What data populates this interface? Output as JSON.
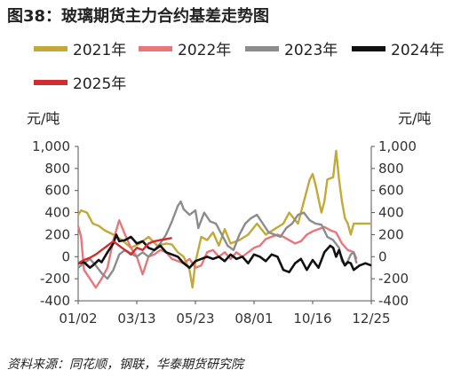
{
  "title": "图38：玻璃期货主力合约基差走势图",
  "source": "资料来源：同花顺，钢联，华泰期货研究院",
  "chart_data": {
    "type": "line",
    "x_ticks": [
      "01/02",
      "03/13",
      "05/23",
      "08/01",
      "10/16",
      "12/25"
    ],
    "y_ticks": [
      "1,000",
      "800",
      "600",
      "400",
      "200",
      "0",
      "-200",
      "-400"
    ],
    "y2_ticks": [
      "1,000",
      "800",
      "600",
      "400",
      "200",
      "0",
      "-200",
      "-400"
    ],
    "ylabel": "元/吨",
    "y2label": "元/吨",
    "ylim": [
      -400,
      1000
    ],
    "series": [
      {
        "name": "2021年",
        "color": "#c2a93a",
        "points": [
          [
            0,
            380
          ],
          [
            1,
            420
          ],
          [
            3,
            400
          ],
          [
            5,
            300
          ],
          [
            7,
            280
          ],
          [
            9,
            240
          ],
          [
            12,
            200
          ],
          [
            15,
            150
          ],
          [
            18,
            80
          ],
          [
            21,
            120
          ],
          [
            24,
            180
          ],
          [
            27,
            100
          ],
          [
            30,
            120
          ],
          [
            32,
            110
          ],
          [
            34,
            40
          ],
          [
            36,
            0
          ],
          [
            38,
            -120
          ],
          [
            39,
            -280
          ],
          [
            40,
            -50
          ],
          [
            42,
            180
          ],
          [
            44,
            150
          ],
          [
            46,
            220
          ],
          [
            48,
            100
          ],
          [
            50,
            250
          ],
          [
            52,
            120
          ],
          [
            55,
            150
          ],
          [
            58,
            200
          ],
          [
            61,
            300
          ],
          [
            64,
            200
          ],
          [
            67,
            250
          ],
          [
            70,
            300
          ],
          [
            72,
            400
          ],
          [
            75,
            300
          ],
          [
            77,
            500
          ],
          [
            79,
            700
          ],
          [
            80,
            750
          ],
          [
            81,
            650
          ],
          [
            83,
            400
          ],
          [
            84,
            500
          ],
          [
            85,
            700
          ],
          [
            87,
            720
          ],
          [
            88,
            960
          ],
          [
            89,
            700
          ],
          [
            90,
            500
          ],
          [
            91,
            350
          ],
          [
            92,
            300
          ],
          [
            93,
            200
          ],
          [
            94,
            300
          ],
          [
            96,
            300
          ],
          [
            98,
            300
          ],
          [
            100,
            300
          ]
        ]
      },
      {
        "name": "2022年",
        "color": "#e8767a",
        "points": [
          [
            0,
            280
          ],
          [
            1,
            180
          ],
          [
            2,
            -120
          ],
          [
            4,
            -200
          ],
          [
            6,
            -280
          ],
          [
            8,
            -200
          ],
          [
            10,
            -100
          ],
          [
            12,
            150
          ],
          [
            14,
            330
          ],
          [
            16,
            200
          ],
          [
            18,
            80
          ],
          [
            20,
            0
          ],
          [
            22,
            -160
          ],
          [
            24,
            0
          ],
          [
            26,
            20
          ],
          [
            28,
            60
          ],
          [
            30,
            40
          ],
          [
            32,
            -20
          ],
          [
            34,
            -40
          ],
          [
            36,
            -60
          ],
          [
            38,
            -20
          ],
          [
            40,
            -100
          ],
          [
            42,
            -80
          ],
          [
            44,
            40
          ],
          [
            46,
            60
          ],
          [
            48,
            0
          ],
          [
            50,
            40
          ],
          [
            52,
            -20
          ],
          [
            54,
            40
          ],
          [
            56,
            0
          ],
          [
            58,
            40
          ],
          [
            60,
            80
          ],
          [
            62,
            100
          ],
          [
            64,
            160
          ],
          [
            66,
            180
          ],
          [
            68,
            200
          ],
          [
            70,
            180
          ],
          [
            72,
            150
          ],
          [
            74,
            120
          ],
          [
            76,
            140
          ],
          [
            78,
            200
          ],
          [
            80,
            230
          ],
          [
            82,
            250
          ],
          [
            84,
            270
          ],
          [
            86,
            240
          ],
          [
            88,
            220
          ],
          [
            90,
            120
          ],
          [
            92,
            60
          ],
          [
            94,
            40
          ],
          [
            95,
            -20
          ]
        ]
      },
      {
        "name": "2023年",
        "color": "#8c8c8c",
        "points": [
          [
            0,
            -100
          ],
          [
            2,
            -60
          ],
          [
            4,
            -20
          ],
          [
            6,
            -80
          ],
          [
            8,
            -150
          ],
          [
            10,
            -200
          ],
          [
            12,
            -120
          ],
          [
            14,
            20
          ],
          [
            16,
            60
          ],
          [
            18,
            30
          ],
          [
            20,
            0
          ],
          [
            22,
            40
          ],
          [
            24,
            0
          ],
          [
            26,
            60
          ],
          [
            28,
            120
          ],
          [
            30,
            200
          ],
          [
            32,
            320
          ],
          [
            34,
            460
          ],
          [
            35,
            500
          ],
          [
            36,
            430
          ],
          [
            38,
            380
          ],
          [
            40,
            420
          ],
          [
            41,
            260
          ],
          [
            43,
            400
          ],
          [
            45,
            320
          ],
          [
            47,
            300
          ],
          [
            49,
            200
          ],
          [
            51,
            100
          ],
          [
            53,
            60
          ],
          [
            55,
            200
          ],
          [
            57,
            300
          ],
          [
            59,
            350
          ],
          [
            61,
            380
          ],
          [
            63,
            300
          ],
          [
            65,
            220
          ],
          [
            67,
            200
          ],
          [
            69,
            180
          ],
          [
            71,
            260
          ],
          [
            73,
            300
          ],
          [
            75,
            380
          ],
          [
            77,
            400
          ],
          [
            79,
            330
          ],
          [
            81,
            300
          ],
          [
            83,
            290
          ],
          [
            85,
            180
          ],
          [
            87,
            150
          ],
          [
            89,
            80
          ],
          [
            90,
            -40
          ],
          [
            91,
            -80
          ],
          [
            92,
            -40
          ],
          [
            93,
            20
          ],
          [
            94,
            40
          ],
          [
            95,
            -60
          ]
        ]
      },
      {
        "name": "2024年",
        "color": "#111111",
        "points": [
          [
            0,
            -60
          ],
          [
            2,
            -50
          ],
          [
            4,
            -100
          ],
          [
            5,
            -80
          ],
          [
            7,
            -30
          ],
          [
            8,
            -50
          ],
          [
            10,
            40
          ],
          [
            12,
            120
          ],
          [
            13,
            200
          ],
          [
            14,
            140
          ],
          [
            16,
            150
          ],
          [
            18,
            180
          ],
          [
            20,
            120
          ],
          [
            22,
            140
          ],
          [
            24,
            80
          ],
          [
            26,
            60
          ],
          [
            28,
            100
          ],
          [
            30,
            40
          ],
          [
            32,
            20
          ],
          [
            34,
            0
          ],
          [
            36,
            -60
          ],
          [
            38,
            -100
          ],
          [
            40,
            -40
          ],
          [
            42,
            -20
          ],
          [
            44,
            0
          ],
          [
            46,
            -20
          ],
          [
            48,
            0
          ],
          [
            50,
            -40
          ],
          [
            52,
            20
          ],
          [
            54,
            -20
          ],
          [
            56,
            0
          ],
          [
            58,
            -60
          ],
          [
            60,
            20
          ],
          [
            62,
            0
          ],
          [
            64,
            -40
          ],
          [
            66,
            20
          ],
          [
            68,
            0
          ],
          [
            70,
            -120
          ],
          [
            72,
            -140
          ],
          [
            74,
            -60
          ],
          [
            76,
            -20
          ],
          [
            78,
            -120
          ],
          [
            80,
            -30
          ],
          [
            82,
            -100
          ],
          [
            84,
            40
          ],
          [
            86,
            100
          ],
          [
            87,
            80
          ],
          [
            88,
            0
          ],
          [
            89,
            60
          ],
          [
            90,
            -20
          ],
          [
            91,
            -80
          ],
          [
            92,
            -50
          ],
          [
            93,
            -60
          ],
          [
            94,
            -120
          ],
          [
            96,
            -80
          ],
          [
            98,
            -60
          ],
          [
            100,
            -80
          ]
        ]
      },
      {
        "name": "2025年",
        "color": "#d02e2e",
        "points": [
          [
            0,
            -60
          ],
          [
            2,
            -30
          ],
          [
            4,
            -10
          ],
          [
            6,
            20
          ],
          [
            8,
            60
          ],
          [
            10,
            100
          ],
          [
            12,
            140
          ],
          [
            14,
            100
          ],
          [
            16,
            60
          ],
          [
            18,
            20
          ],
          [
            20,
            80
          ],
          [
            22,
            60
          ],
          [
            24,
            120
          ],
          [
            26,
            140
          ],
          [
            28,
            150
          ],
          [
            30,
            160
          ],
          [
            32,
            170
          ]
        ]
      }
    ]
  }
}
